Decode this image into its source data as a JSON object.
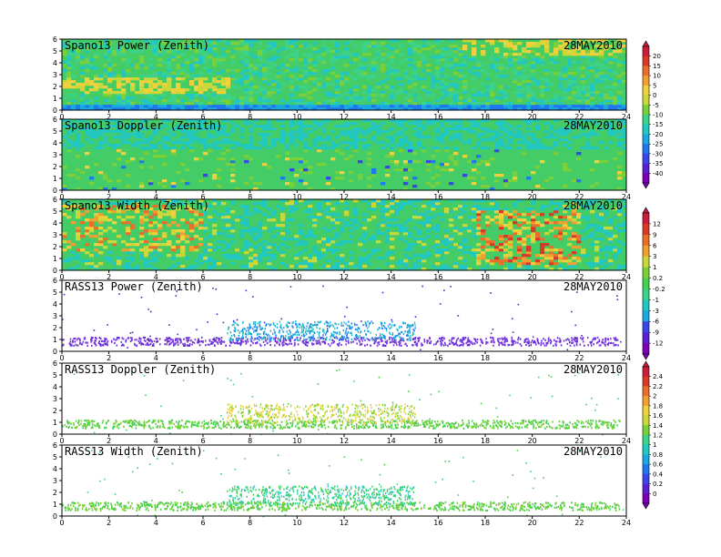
{
  "figure": {
    "colors": {
      "colorbar": [
        "#7a00b4",
        "#5a1fd0",
        "#3a46e8",
        "#1f78f0",
        "#19a8e0",
        "#22c8c0",
        "#3cd28a",
        "#45d050",
        "#7ad03a",
        "#c8d83a",
        "#f0d03c",
        "#f0a030",
        "#e8702a",
        "#d83a28",
        "#c81e3c"
      ],
      "background_field": "#44cc66",
      "scatter_base": [
        "#6a2ad8",
        "#7a40e0"
      ]
    },
    "panels": [
      {
        "title": "Spano13 Power (Zenith)",
        "date": "28MAY2010",
        "kind": "field",
        "variant": "power"
      },
      {
        "title": "Spano13 Doppler (Zenith)",
        "date": "28MAY2010",
        "kind": "field",
        "variant": "doppler"
      },
      {
        "title": "Spano13 Width (Zenith)",
        "date": "28MAY2010",
        "kind": "field",
        "variant": "width"
      },
      {
        "title": "RASS13 Power (Zenith)",
        "date": "28MAY2010",
        "kind": "scatter",
        "variant": "rpower"
      },
      {
        "title": "RASS13 Doppler (Zenith)",
        "date": "28MAY2010",
        "kind": "scatter",
        "variant": "rdoppler"
      },
      {
        "title": "RASS13 Width (Zenith)",
        "date": "28MAY2010",
        "kind": "scatter",
        "variant": "rwidth"
      }
    ],
    "colorbars": [
      {
        "labels": [
          "20",
          "15",
          "10",
          "5",
          "0",
          "-5",
          "-10",
          "-15",
          "-20",
          "-25",
          "-30",
          "-35",
          "-40"
        ]
      },
      {
        "labels": [
          "12",
          "9",
          "6",
          "3",
          "1",
          "0.2",
          "-0.2",
          "-1",
          "-3",
          "-6",
          "-9",
          "-12"
        ]
      },
      {
        "labels": [
          "2.4",
          "2.2",
          "2",
          "1.8",
          "1.6",
          "1.4",
          "1.2",
          "1",
          "0.8",
          "0.6",
          "0.4",
          "0.2",
          "0"
        ]
      }
    ]
  },
  "chart_data": [
    {
      "type": "heatmap",
      "title": "Spano13 Power (Zenith)",
      "annotation": "28MAY2010",
      "xlim": [
        0,
        24
      ],
      "ylim": [
        0,
        6
      ],
      "x_ticks": [
        "0",
        "2",
        "4",
        "6",
        "8",
        "10",
        "12",
        "14",
        "16",
        "18",
        "20",
        "22",
        "24"
      ],
      "y_ticks": [
        "0",
        "1",
        "2",
        "3",
        "4",
        "5",
        "6"
      ]
    },
    {
      "type": "heatmap",
      "title": "Spano13 Doppler (Zenith)",
      "annotation": "28MAY2010",
      "xlim": [
        0,
        24
      ],
      "ylim": [
        0,
        6
      ],
      "x_ticks": [
        "0",
        "2",
        "4",
        "6",
        "8",
        "10",
        "12",
        "14",
        "16",
        "18",
        "20",
        "22",
        "24"
      ],
      "y_ticks": [
        "0",
        "1",
        "2",
        "3",
        "4",
        "5",
        "6"
      ]
    },
    {
      "type": "heatmap",
      "title": "Spano13 Width (Zenith)",
      "annotation": "28MAY2010",
      "xlim": [
        0,
        24
      ],
      "ylim": [
        0,
        6
      ],
      "x_ticks": [
        "0",
        "2",
        "4",
        "6",
        "8",
        "10",
        "12",
        "14",
        "16",
        "18",
        "20",
        "22",
        "24"
      ],
      "y_ticks": [
        "0",
        "1",
        "2",
        "3",
        "4",
        "5",
        "6"
      ]
    },
    {
      "type": "scatter",
      "title": "RASS13 Power (Zenith)",
      "annotation": "28MAY2010",
      "xlim": [
        0,
        24
      ],
      "ylim": [
        0,
        6
      ],
      "x_ticks": [
        "0",
        "2",
        "4",
        "6",
        "8",
        "10",
        "12",
        "14",
        "16",
        "18",
        "20",
        "22",
        "24"
      ],
      "y_ticks": [
        "0",
        "1",
        "2",
        "3",
        "4",
        "5",
        "6"
      ]
    },
    {
      "type": "scatter",
      "title": "RASS13 Doppler (Zenith)",
      "annotation": "28MAY2010",
      "xlim": [
        0,
        24
      ],
      "ylim": [
        0,
        6
      ],
      "x_ticks": [
        "0",
        "2",
        "4",
        "6",
        "8",
        "10",
        "12",
        "14",
        "16",
        "18",
        "20",
        "22",
        "24"
      ],
      "y_ticks": [
        "0",
        "1",
        "2",
        "3",
        "4",
        "5",
        "6"
      ]
    },
    {
      "type": "scatter",
      "title": "RASS13 Width (Zenith)",
      "annotation": "28MAY2010",
      "xlim": [
        0,
        24
      ],
      "ylim": [
        0,
        6
      ],
      "x_ticks": [
        "0",
        "2",
        "4",
        "6",
        "8",
        "10",
        "12",
        "14",
        "16",
        "18",
        "20",
        "22",
        "24"
      ],
      "y_ticks": [
        "0",
        "1",
        "2",
        "3",
        "4",
        "5",
        "6"
      ]
    }
  ]
}
